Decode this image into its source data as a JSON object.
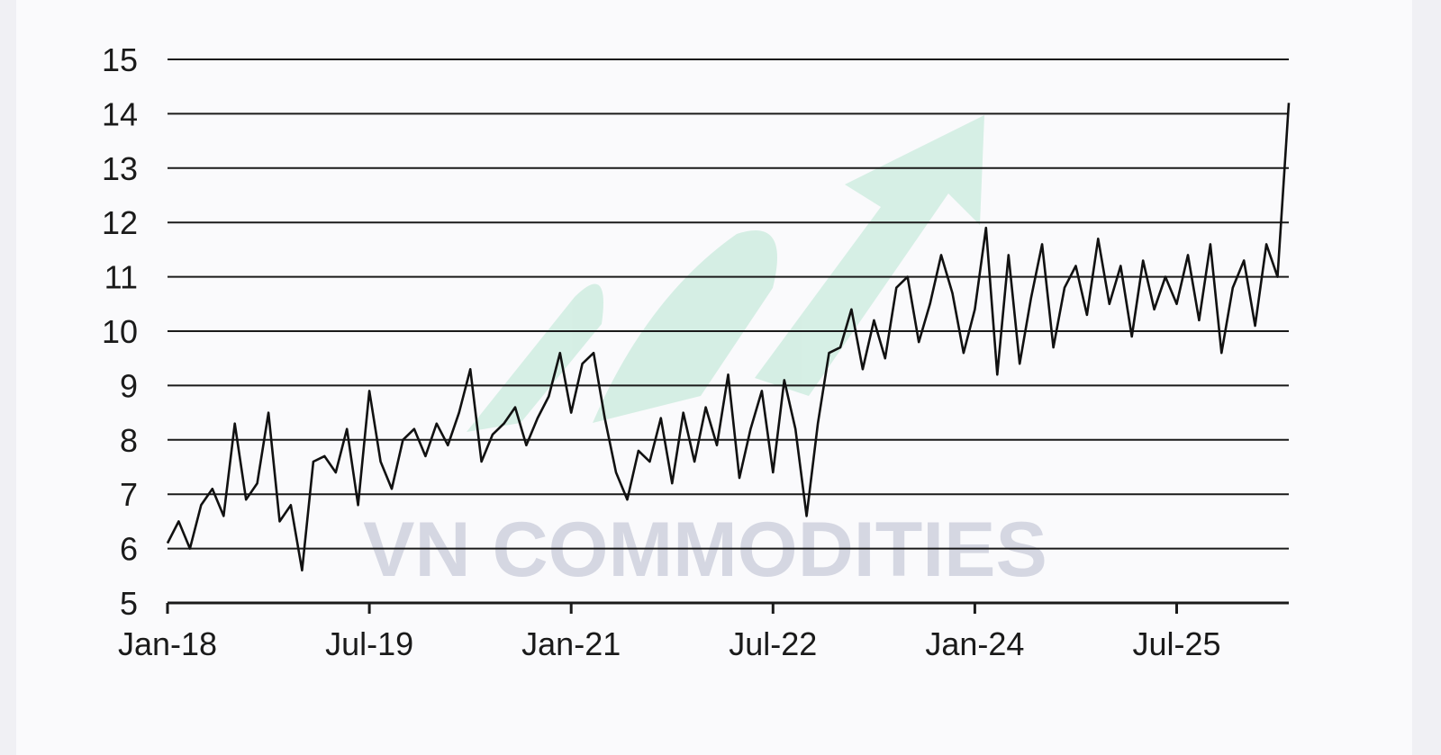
{
  "chart_data": {
    "type": "line",
    "title": "",
    "xlabel": "",
    "ylabel": "",
    "ylim": [
      5,
      15
    ],
    "yticks": [
      5,
      6,
      7,
      8,
      9,
      10,
      11,
      12,
      13,
      14,
      15
    ],
    "ytick_labels": [
      "5",
      "6",
      "7",
      "8",
      "9",
      "10",
      "11",
      "12",
      "13",
      "14",
      "15"
    ],
    "xlim": [
      "2018-01",
      "2026-05"
    ],
    "xticks": [
      {
        "label": "Jan-18",
        "date": "2018-01"
      },
      {
        "label": "Jul-19",
        "date": "2019-07"
      },
      {
        "label": "Jan-21",
        "date": "2021-01"
      },
      {
        "label": "Jul-22",
        "date": "2022-07"
      },
      {
        "label": "Jan-24",
        "date": "2024-01"
      },
      {
        "label": "Jul-25",
        "date": "2025-07"
      }
    ],
    "grid": true,
    "series": [
      {
        "x": [
          "2018-01",
          "2018-02",
          "2018-03",
          "2018-04",
          "2018-05",
          "2018-06",
          "2018-07",
          "2018-08",
          "2018-09",
          "2018-10",
          "2018-11",
          "2018-12",
          "2019-01",
          "2019-02",
          "2019-03",
          "2019-04",
          "2019-05",
          "2019-06",
          "2019-07",
          "2019-08",
          "2019-09",
          "2019-10",
          "2019-11",
          "2019-12",
          "2020-01",
          "2020-02",
          "2020-03",
          "2020-04",
          "2020-05",
          "2020-06",
          "2020-07",
          "2020-08",
          "2020-09",
          "2020-10",
          "2020-11",
          "2020-12",
          "2021-01",
          "2021-02",
          "2021-03",
          "2021-04",
          "2021-05",
          "2021-06",
          "2021-07",
          "2021-08",
          "2021-09",
          "2021-10",
          "2021-11",
          "2021-12",
          "2022-01",
          "2022-02",
          "2022-03",
          "2022-04",
          "2022-05",
          "2022-06",
          "2022-07",
          "2022-08",
          "2022-09",
          "2022-10",
          "2022-11",
          "2022-12",
          "2023-01",
          "2023-02",
          "2023-03",
          "2023-04",
          "2023-05",
          "2023-06",
          "2023-07",
          "2023-08",
          "2023-09",
          "2023-10",
          "2023-11",
          "2023-12",
          "2024-01",
          "2024-02",
          "2024-03",
          "2024-04",
          "2024-05",
          "2024-06",
          "2024-07",
          "2024-08",
          "2024-09",
          "2024-10",
          "2024-11",
          "2024-12",
          "2025-01",
          "2025-02",
          "2025-03",
          "2025-04",
          "2025-05",
          "2025-06",
          "2025-07",
          "2025-08",
          "2025-09",
          "2025-10",
          "2025-11",
          "2025-12",
          "2026-01",
          "2026-02",
          "2026-03",
          "2026-04",
          "2026-05"
        ],
        "values": [
          6.1,
          6.5,
          6.0,
          6.8,
          7.1,
          6.6,
          8.3,
          6.9,
          7.2,
          8.5,
          6.5,
          6.8,
          5.6,
          7.6,
          7.7,
          7.4,
          8.2,
          6.8,
          8.9,
          7.6,
          7.1,
          8.0,
          8.2,
          7.7,
          8.3,
          7.9,
          8.5,
          9.3,
          7.6,
          8.1,
          8.3,
          8.6,
          7.9,
          8.4,
          8.8,
          9.6,
          8.5,
          9.4,
          9.6,
          8.4,
          7.4,
          6.9,
          7.8,
          7.6,
          8.4,
          7.2,
          8.5,
          7.6,
          8.6,
          7.9,
          9.2,
          7.3,
          8.2,
          8.9,
          7.4,
          9.1,
          8.2,
          6.6,
          8.3,
          9.6,
          9.7,
          10.4,
          9.3,
          10.2,
          9.5,
          10.8,
          11.0,
          9.8,
          10.5,
          11.4,
          10.7,
          9.6,
          10.4,
          11.9,
          9.2,
          11.4,
          9.4,
          10.6,
          11.6,
          9.7,
          10.8,
          11.2,
          10.3,
          11.7,
          10.5,
          11.2,
          9.9,
          11.3,
          10.4,
          11.0,
          10.5,
          11.4,
          10.2,
          11.6,
          9.6,
          10.8,
          11.3,
          10.1,
          11.6,
          11.0,
          14.2
        ]
      }
    ]
  },
  "watermark": {
    "text": "VN COMMODITIES",
    "arrow_color": "#b8e6d2",
    "text_color": "#d2d4e0"
  }
}
